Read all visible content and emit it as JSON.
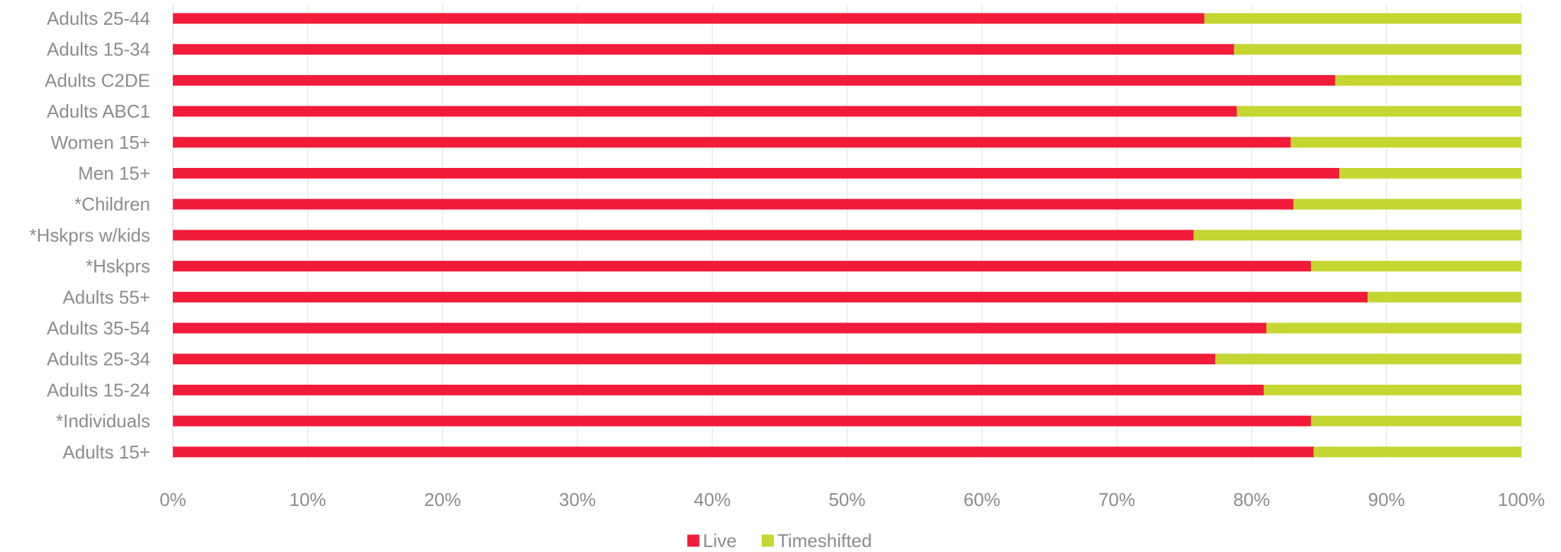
{
  "chart_data": {
    "type": "bar",
    "orientation": "horizontal",
    "stacked": true,
    "percent_stacked": true,
    "categories": [
      "Adults 25-44",
      "Adults 15-34",
      "Adults C2DE",
      "Adults ABC1",
      "Women 15+",
      "Men 15+",
      "*Children",
      "*Hskprs w/kids",
      "*Hskprs",
      "Adults 55+",
      "Adults 35-54",
      "Adults 25-34",
      "Adults 15-24",
      "*Individuals",
      "Adults 15+"
    ],
    "series": [
      {
        "name": "Live",
        "color": "#f21c3a",
        "values": [
          76.5,
          78.7,
          86.2,
          78.9,
          82.9,
          86.5,
          83.1,
          75.7,
          84.4,
          88.6,
          81.1,
          77.3,
          80.9,
          84.4,
          84.6
        ]
      },
      {
        "name": "Timeshifted",
        "color": "#c5d632",
        "values": [
          23.5,
          21.3,
          13.8,
          21.1,
          17.1,
          13.5,
          16.9,
          24.3,
          15.6,
          11.4,
          18.9,
          22.7,
          19.1,
          15.6,
          15.4
        ]
      }
    ],
    "x_ticks": [
      "0%",
      "10%",
      "20%",
      "30%",
      "40%",
      "50%",
      "60%",
      "70%",
      "80%",
      "90%",
      "100%"
    ],
    "xlim": [
      0,
      100
    ],
    "grid": true,
    "legend_position": "bottom"
  }
}
